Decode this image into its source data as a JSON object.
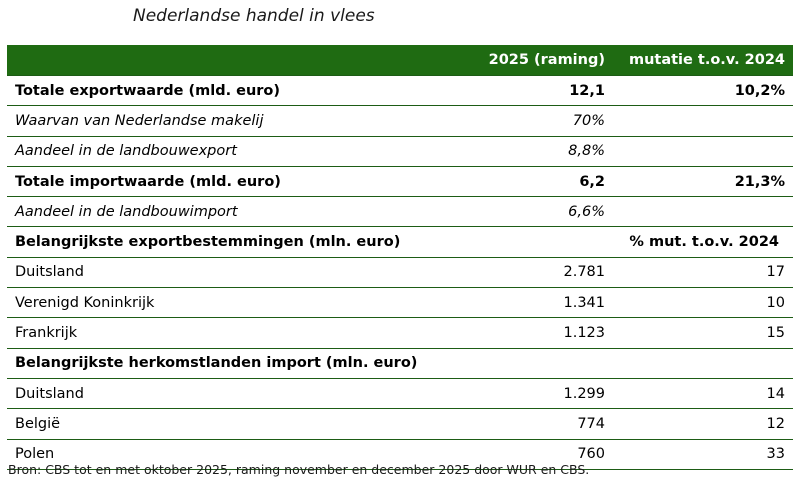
{
  "title": "Nederlandse handel in vlees",
  "header": {
    "col1": "",
    "col2": "2025 (raming)",
    "col3": "mutatie t.o.v. 2024"
  },
  "rows": [
    {
      "label": "Totale exportwaarde (mld. euro)",
      "value": "12,1",
      "change": "10,2%"
    },
    {
      "label": "Waarvan van Nederlandse makelij",
      "value": "70%",
      "change": ""
    },
    {
      "label": "Aandeel in de landbouwexport",
      "value": "8,8%",
      "change": ""
    },
    {
      "label": "Totale importwaarde (mld. euro)",
      "value": "6,2",
      "change": "21,3%"
    },
    {
      "label": "Aandeel in de landbouwimport",
      "value": "6,6%",
      "change": ""
    },
    {
      "label": "Belangrijkste exportbestemmingen (mln. euro)",
      "value": "",
      "change": "% mut. t.o.v. 2024"
    },
    {
      "label": "Duitsland",
      "value": "2.781",
      "change": "17"
    },
    {
      "label": "Verenigd Koninkrijk",
      "value": "1.341",
      "change": "10"
    },
    {
      "label": "Frankrijk",
      "value": "1.123",
      "change": "15"
    },
    {
      "label": "Belangrijkste herkomstlanden import (mln. euro)",
      "value": "",
      "change": ""
    },
    {
      "label": "Duitsland",
      "value": "1.299",
      "change": "14"
    },
    {
      "label": "België",
      "value": "774",
      "change": "12"
    },
    {
      "label": "Polen",
      "value": "760",
      "change": "33"
    }
  ],
  "source": "Bron: CBS tot en met oktober 2025, raming november en december 2025 door WUR en CBS.",
  "colors": {
    "header_bg": "#1f6b12",
    "header_text": "#ffffff",
    "rule": "#1d5c15"
  }
}
